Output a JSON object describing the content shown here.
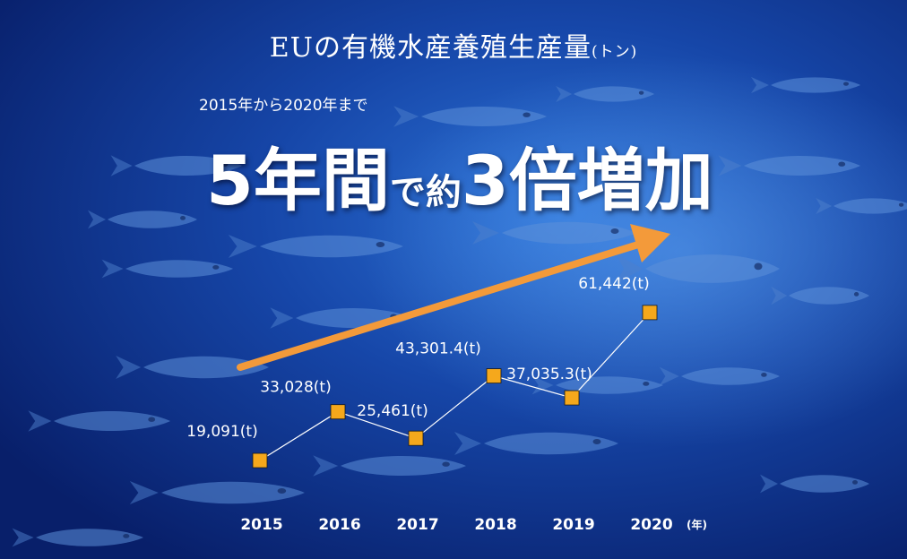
{
  "header": {
    "title": "EUの有機水産養殖生産量",
    "title_unit": "(トン)",
    "period": "2015年から2020年まで",
    "headline_part1": "5年間",
    "headline_part2": "で約",
    "headline_part3": "3倍増加"
  },
  "colors": {
    "marker": "#f5a81c",
    "arrow": "#f39a3a",
    "line": "#ffffff",
    "background": "#0b2f86"
  },
  "chart_data": {
    "type": "scatter",
    "title": "EUの有機水産養殖生産量(トン)",
    "x": [
      "2015",
      "2016",
      "2017",
      "2018",
      "2019",
      "2020"
    ],
    "values": [
      19091,
      33028,
      25461,
      43301.4,
      37035.3,
      61442
    ],
    "labels": [
      "19,091(t)",
      "33,028(t)",
      "25,461(t)",
      "43,301.4(t)",
      "37,035.3(t)",
      "61,442(t)"
    ],
    "x_unit": "(年)",
    "ylim": [
      0,
      80000
    ],
    "grid": false,
    "connected": true
  }
}
